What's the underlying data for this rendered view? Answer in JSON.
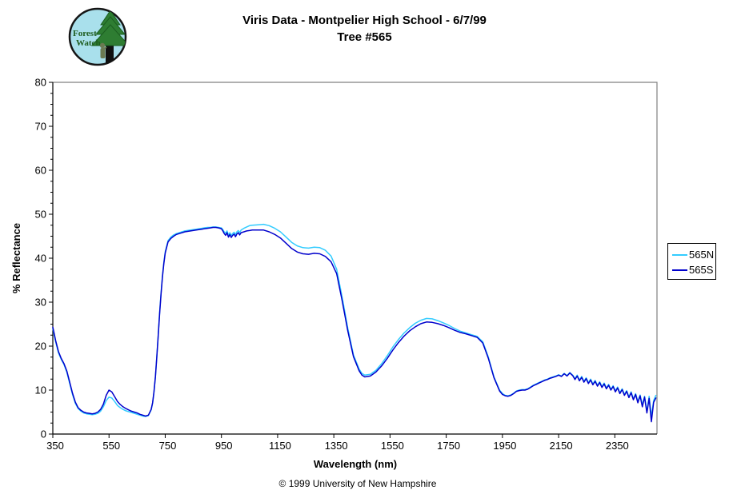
{
  "header": {},
  "logo": {
    "line1": "Forest",
    "line2": "Watch",
    "bg_color": "#A9E0EC",
    "tree_color": "#2E7D32",
    "tree_edge_color": "#1B5E20",
    "trunk_color": "#101010",
    "figure_color": "#6B7A52",
    "text_color": "#1E5C1E"
  },
  "footer": {
    "copyright": "© 1999 University of New Hampshire"
  },
  "chart_data": {
    "type": "line",
    "title": "Viris Data - Montpelier High School - 6/7/99",
    "subtitle": "Tree #565",
    "xlabel": "Wavelength (nm)",
    "ylabel": "% Reflectance",
    "xlim": [
      350,
      2500
    ],
    "ylim": [
      0,
      80
    ],
    "x_ticks": [
      350,
      550,
      750,
      950,
      1150,
      1350,
      1550,
      1750,
      1950,
      2150,
      2350
    ],
    "y_ticks": [
      0,
      10,
      20,
      30,
      40,
      50,
      60,
      70,
      80
    ],
    "y_minor_step": 2.5,
    "grid": false,
    "legend_position": "right",
    "axis_color": "#000000",
    "plot_border_color": "#808080",
    "wavelengths": [
      350,
      355,
      360,
      370,
      380,
      390,
      400,
      410,
      420,
      430,
      440,
      450,
      460,
      470,
      480,
      490,
      500,
      510,
      520,
      530,
      540,
      550,
      560,
      570,
      580,
      590,
      600,
      610,
      620,
      630,
      640,
      650,
      660,
      670,
      680,
      690,
      700,
      705,
      710,
      715,
      720,
      725,
      730,
      735,
      740,
      745,
      750,
      760,
      770,
      780,
      790,
      800,
      820,
      840,
      860,
      880,
      900,
      910,
      920,
      930,
      940,
      950,
      955,
      960,
      965,
      970,
      975,
      980,
      985,
      990,
      995,
      1000,
      1005,
      1010,
      1015,
      1020,
      1030,
      1040,
      1050,
      1060,
      1080,
      1100,
      1120,
      1140,
      1160,
      1180,
      1200,
      1220,
      1240,
      1260,
      1280,
      1300,
      1320,
      1340,
      1360,
      1380,
      1400,
      1420,
      1440,
      1450,
      1460,
      1480,
      1500,
      1520,
      1540,
      1560,
      1580,
      1600,
      1620,
      1640,
      1660,
      1680,
      1700,
      1720,
      1740,
      1760,
      1780,
      1800,
      1820,
      1840,
      1860,
      1880,
      1900,
      1920,
      1940,
      1950,
      1960,
      1970,
      1980,
      1990,
      2000,
      2010,
      2020,
      2030,
      2040,
      2050,
      2060,
      2070,
      2080,
      2090,
      2100,
      2110,
      2120,
      2130,
      2140,
      2150,
      2160,
      2170,
      2180,
      2190,
      2200,
      2208,
      2216,
      2224,
      2232,
      2240,
      2248,
      2256,
      2264,
      2272,
      2280,
      2288,
      2296,
      2304,
      2312,
      2320,
      2328,
      2336,
      2344,
      2352,
      2360,
      2368,
      2376,
      2384,
      2392,
      2400,
      2408,
      2416,
      2424,
      2432,
      2440,
      2448,
      2456,
      2464,
      2472,
      2480,
      2488,
      2496
    ],
    "series": [
      {
        "name": "565N",
        "color": "#33CCFF",
        "values": [
          24.0,
          22.5,
          21.0,
          18.5,
          17.0,
          15.8,
          14.0,
          11.5,
          9.0,
          7.0,
          5.8,
          5.2,
          4.8,
          4.6,
          4.5,
          4.4,
          4.5,
          4.7,
          5.2,
          6.2,
          7.6,
          8.4,
          8.2,
          7.4,
          6.5,
          6.0,
          5.6,
          5.3,
          5.1,
          4.9,
          4.7,
          4.5,
          4.3,
          4.1,
          4.0,
          4.2,
          5.5,
          7.0,
          9.5,
          13.0,
          17.5,
          22.5,
          27.5,
          32.0,
          36.0,
          39.0,
          41.5,
          44.0,
          44.8,
          45.3,
          45.6,
          45.8,
          46.2,
          46.4,
          46.6,
          46.8,
          47.0,
          47.0,
          47.1,
          47.1,
          47.0,
          46.9,
          46.5,
          46.0,
          45.7,
          46.2,
          45.3,
          45.8,
          45.2,
          45.6,
          45.9,
          45.4,
          46.0,
          46.3,
          45.8,
          46.4,
          46.8,
          47.1,
          47.4,
          47.5,
          47.6,
          47.7,
          47.4,
          46.8,
          46.0,
          44.8,
          43.6,
          42.8,
          42.4,
          42.3,
          42.5,
          42.4,
          41.8,
          40.5,
          37.5,
          31.0,
          24.0,
          18.0,
          14.8,
          13.8,
          13.4,
          13.6,
          14.5,
          16.0,
          17.8,
          19.8,
          21.5,
          23.0,
          24.2,
          25.2,
          25.9,
          26.3,
          26.2,
          25.8,
          25.3,
          24.7,
          24.0,
          23.4,
          23.0,
          22.6,
          22.2,
          21.0,
          17.5,
          13.0,
          10.0,
          9.2,
          8.8,
          8.7,
          8.9,
          9.3,
          9.8,
          10.0,
          10.1,
          10.1,
          10.3,
          10.7,
          11.1,
          11.4,
          11.7,
          12.0,
          12.3,
          12.5,
          12.8,
          13.0,
          13.2,
          13.5,
          13.2,
          13.8,
          13.3,
          14.0,
          13.4,
          12.6,
          13.4,
          12.3,
          13.1,
          12.0,
          12.8,
          11.7,
          12.5,
          11.4,
          12.2,
          11.1,
          11.9,
          10.8,
          11.6,
          10.5,
          11.3,
          10.2,
          11.0,
          9.8,
          10.7,
          9.4,
          10.3,
          9.0,
          9.9,
          8.5,
          9.6,
          8.0,
          9.2,
          7.4,
          8.9,
          6.6,
          8.6,
          5.2,
          8.6,
          3.9,
          7.6,
          8.8
        ]
      },
      {
        "name": "565S",
        "color": "#0000CC",
        "values": [
          24.3,
          22.8,
          21.3,
          18.8,
          17.2,
          16.0,
          14.3,
          11.8,
          9.3,
          7.3,
          6.0,
          5.4,
          5.0,
          4.8,
          4.7,
          4.6,
          4.7,
          5.0,
          5.6,
          6.8,
          8.8,
          10.0,
          9.6,
          8.5,
          7.4,
          6.7,
          6.2,
          5.8,
          5.5,
          5.2,
          5.0,
          4.8,
          4.5,
          4.3,
          4.1,
          4.3,
          5.6,
          7.1,
          9.6,
          13.0,
          17.4,
          22.3,
          27.2,
          31.7,
          35.7,
          38.7,
          41.2,
          43.7,
          44.5,
          45.0,
          45.4,
          45.6,
          46.0,
          46.2,
          46.4,
          46.6,
          46.8,
          46.9,
          47.0,
          47.0,
          46.9,
          46.7,
          46.2,
          45.6,
          45.2,
          45.8,
          44.8,
          45.4,
          44.7,
          45.2,
          45.5,
          44.9,
          45.5,
          45.8,
          45.3,
          45.8,
          46.0,
          46.2,
          46.3,
          46.4,
          46.4,
          46.4,
          46.0,
          45.4,
          44.6,
          43.4,
          42.2,
          41.4,
          41.0,
          40.9,
          41.1,
          41.0,
          40.4,
          39.2,
          36.5,
          30.2,
          23.4,
          17.6,
          14.4,
          13.4,
          13.0,
          13.2,
          14.1,
          15.5,
          17.2,
          19.1,
          20.8,
          22.3,
          23.5,
          24.4,
          25.1,
          25.5,
          25.4,
          25.1,
          24.7,
          24.2,
          23.6,
          23.1,
          22.8,
          22.4,
          22.0,
          20.7,
          17.2,
          12.8,
          9.8,
          9.0,
          8.7,
          8.6,
          8.8,
          9.2,
          9.7,
          9.9,
          10.0,
          10.0,
          10.2,
          10.6,
          11.0,
          11.3,
          11.6,
          11.9,
          12.2,
          12.4,
          12.7,
          12.9,
          13.1,
          13.4,
          13.1,
          13.7,
          13.2,
          13.9,
          13.3,
          12.4,
          13.2,
          12.1,
          12.9,
          11.8,
          12.6,
          11.5,
          12.3,
          11.2,
          12.0,
          10.9,
          11.7,
          10.6,
          11.4,
          10.3,
          11.1,
          10.0,
          10.8,
          9.6,
          10.5,
          9.2,
          10.1,
          8.8,
          9.7,
          8.3,
          9.4,
          7.8,
          9.0,
          7.1,
          8.7,
          6.2,
          8.4,
          4.8,
          8.1,
          2.8,
          7.2,
          8.2
        ]
      }
    ]
  }
}
